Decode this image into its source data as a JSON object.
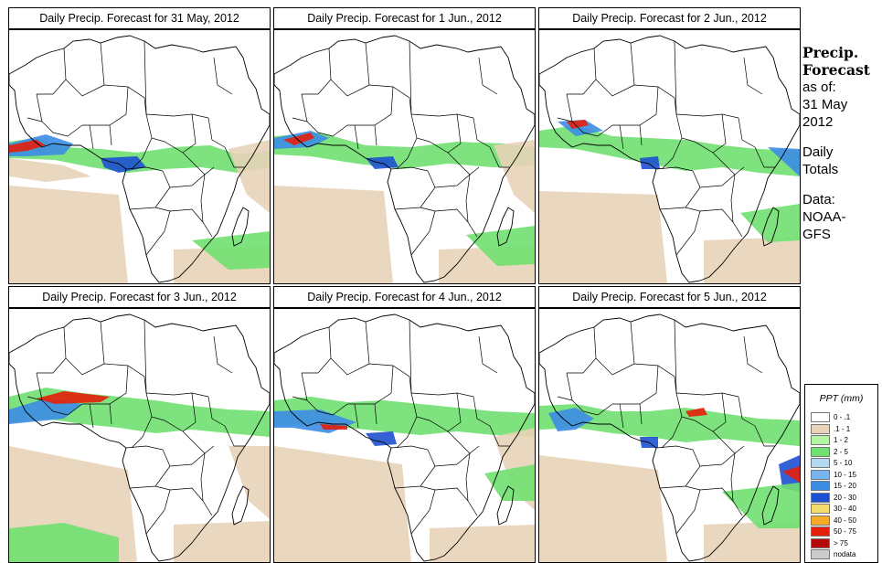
{
  "panels": [
    {
      "title": "Daily Precip. Forecast for  31 May, 2012"
    },
    {
      "title": "Daily Precip. Forecast for  1 Jun., 2012"
    },
    {
      "title": "Daily Precip. Forecast for  2 Jun., 2012"
    },
    {
      "title": "Daily Precip. Forecast for  3 Jun., 2012"
    },
    {
      "title": "Daily Precip. Forecast for  4 Jun., 2012"
    },
    {
      "title": "Daily Precip. Forecast for  5 Jun., 2012"
    }
  ],
  "sidebar": {
    "heading1": "Precip.",
    "heading2": "Forecast",
    "as_of": "as of:",
    "date1": "31 May",
    "date2": "2012",
    "daily": "Daily",
    "totals": "Totals",
    "data_label": "Data:",
    "source1": "NOAA-",
    "source2": "GFS"
  },
  "legend": {
    "title": "PPT (mm)",
    "items": [
      {
        "label": "0 - .1",
        "color": "#ffffff"
      },
      {
        "label": ".1 - 1",
        "color": "#e8d3b8"
      },
      {
        "label": "1 - 2",
        "color": "#b4f5a4"
      },
      {
        "label": "2 - 5",
        "color": "#70e070"
      },
      {
        "label": "5 - 10",
        "color": "#b4d8f0"
      },
      {
        "label": "10 - 15",
        "color": "#78b4ec"
      },
      {
        "label": "15 - 20",
        "color": "#3c8ce4"
      },
      {
        "label": "20 - 30",
        "color": "#1e50d2"
      },
      {
        "label": "30 - 40",
        "color": "#f5dc6e"
      },
      {
        "label": "40 - 50",
        "color": "#f5aa28"
      },
      {
        "label": "50 - 75",
        "color": "#e61e0a"
      },
      {
        "label": "> 75",
        "color": "#b40a0a"
      },
      {
        "label": "nodata",
        "color": "#cccccc"
      }
    ]
  }
}
